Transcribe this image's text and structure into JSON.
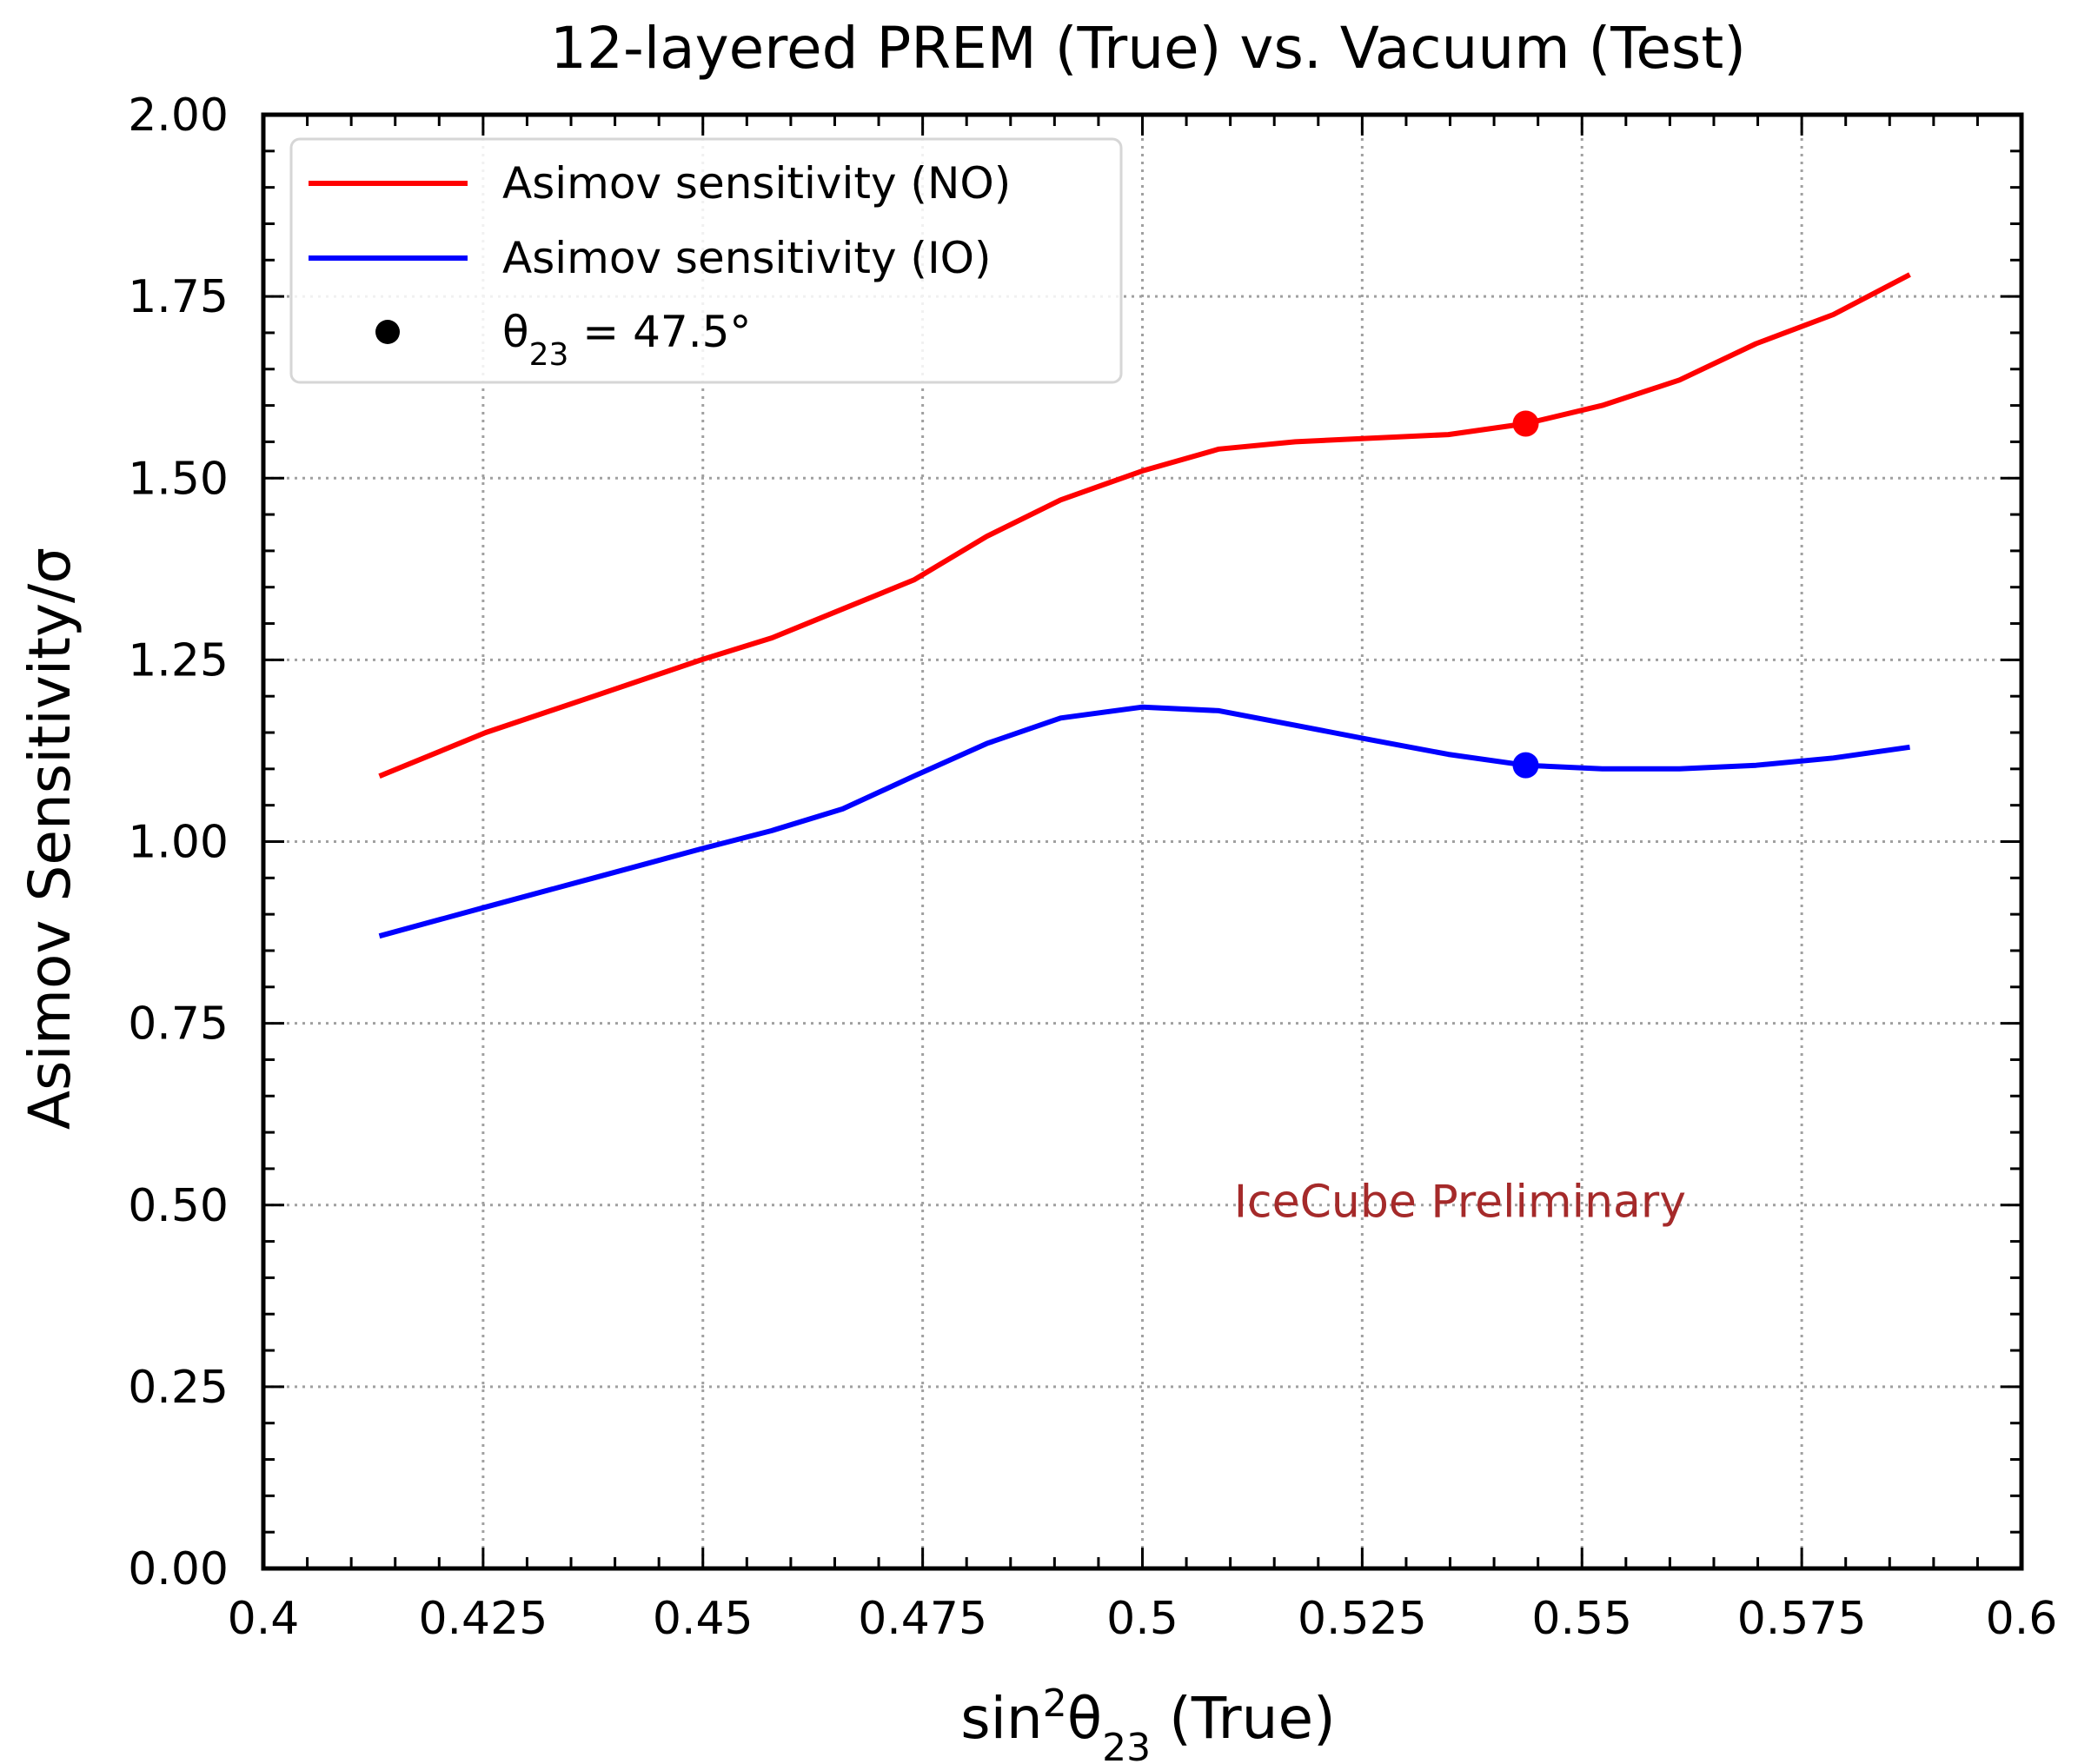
{
  "chart_data": {
    "type": "line",
    "title": "12-layered PREM (True) vs. Vacuum (Test)",
    "xlabel_main": "sin",
    "xlabel_sup": "2",
    "xlabel_theta": "θ",
    "xlabel_sub": "23",
    "xlabel_suffix": " (True)",
    "ylabel": "Asimov Sensitivity/σ",
    "xlim": [
      0.4,
      0.6
    ],
    "ylim": [
      0.0,
      2.0
    ],
    "grid": true,
    "legend_position": "upper-left",
    "x_ticks": [
      0.4,
      0.425,
      0.45,
      0.475,
      0.5,
      0.525,
      0.55,
      0.575,
      0.6
    ],
    "x_tick_labels": [
      "0.4",
      "0.425",
      "0.45",
      "0.475",
      "0.5",
      "0.525",
      "0.55",
      "0.575",
      "0.6"
    ],
    "y_ticks": [
      0.0,
      0.25,
      0.5,
      0.75,
      1.0,
      1.25,
      1.5,
      1.75,
      2.0
    ],
    "y_tick_labels": [
      "0.00",
      "0.25",
      "0.50",
      "0.75",
      "1.00",
      "1.25",
      "1.50",
      "1.75",
      "2.00"
    ],
    "x_minor_step": 0.005,
    "y_minor_step": 0.05,
    "series": [
      {
        "name": "Asimov sensitivity (NO)",
        "color": "#ff0000",
        "x": [
          0.4132,
          0.4253,
          0.4376,
          0.4498,
          0.4578,
          0.4659,
          0.474,
          0.4823,
          0.4907,
          0.5,
          0.5087,
          0.5174,
          0.526,
          0.5348,
          0.5436,
          0.5523,
          0.5611,
          0.5698,
          0.5786,
          0.5873
        ],
        "values": [
          1.09,
          1.15,
          1.2,
          1.25,
          1.28,
          1.32,
          1.36,
          1.42,
          1.47,
          1.51,
          1.54,
          1.55,
          1.555,
          1.56,
          1.575,
          1.6,
          1.635,
          1.685,
          1.725,
          1.78
        ]
      },
      {
        "name": "Asimov sensitivity (IO)",
        "color": "#0000ff",
        "x": [
          0.4132,
          0.4253,
          0.4376,
          0.4498,
          0.4578,
          0.4659,
          0.474,
          0.4823,
          0.4907,
          0.5,
          0.5087,
          0.5174,
          0.526,
          0.5348,
          0.5436,
          0.5523,
          0.5611,
          0.5698,
          0.5786,
          0.5873
        ],
        "values": [
          0.87,
          0.91,
          0.95,
          0.99,
          1.015,
          1.045,
          1.09,
          1.135,
          1.17,
          1.185,
          1.18,
          1.16,
          1.14,
          1.12,
          1.105,
          1.1,
          1.1,
          1.105,
          1.115,
          1.13
        ]
      }
    ],
    "markers": [
      {
        "series": "Asimov sensitivity (NO)",
        "x": 0.5436,
        "y": 1.575,
        "color": "#ff0000"
      },
      {
        "series": "Asimov sensitivity (IO)",
        "x": 0.5436,
        "y": 1.105,
        "color": "#0000ff"
      }
    ],
    "legend": [
      {
        "kind": "line",
        "color": "#ff0000",
        "label": "Asimov sensitivity (NO)"
      },
      {
        "kind": "line",
        "color": "#0000ff",
        "label": "Asimov sensitivity (IO)"
      },
      {
        "kind": "marker",
        "color": "#000000",
        "label_prefix": "θ",
        "label_sub": "23",
        "label_suffix": " = 47.5°"
      }
    ],
    "annotation": {
      "text": "IceCube Preliminary",
      "x": 0.5104,
      "y": 0.505,
      "color": "#a52a2a"
    }
  }
}
